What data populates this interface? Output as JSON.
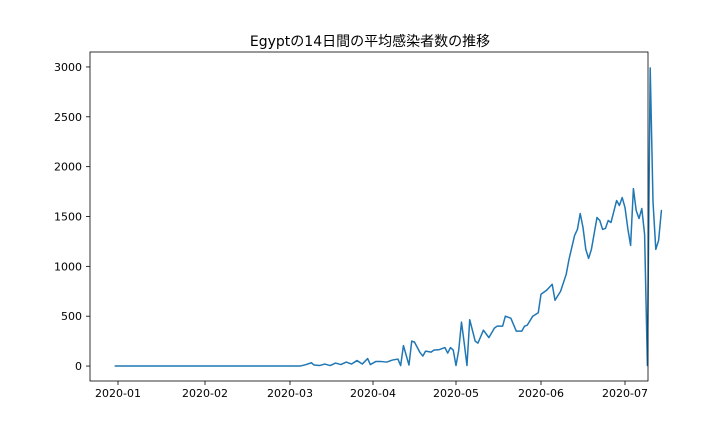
{
  "chart_data": {
    "type": "line",
    "title": "Egyptの14日間の平均感染者数の推移",
    "xlabel": "",
    "ylabel": "",
    "grid": false,
    "legend": "none",
    "xlim": [
      "2019-12-25",
      "2020-07-05"
    ],
    "ylim": [
      -150,
      3150
    ],
    "x_ticks": [
      "2020-01",
      "2020-02",
      "2020-03",
      "2020-04",
      "2020-05",
      "2020-06",
      "2020-07"
    ],
    "y_ticks": [
      0,
      500,
      1000,
      1500,
      2000,
      2500,
      3000
    ],
    "series": [
      {
        "color": "#1f77b4",
        "points": [
          [
            "2019-12-31",
            0
          ],
          [
            "2020-01-15",
            0
          ],
          [
            "2020-02-01",
            0
          ],
          [
            "2020-02-15",
            0
          ],
          [
            "2020-03-01",
            0
          ],
          [
            "2020-03-05",
            1
          ],
          [
            "2020-03-07",
            15
          ],
          [
            "2020-03-09",
            33
          ],
          [
            "2020-03-10",
            10
          ],
          [
            "2020-03-12",
            5
          ],
          [
            "2020-03-14",
            20
          ],
          [
            "2020-03-16",
            5
          ],
          [
            "2020-03-18",
            30
          ],
          [
            "2020-03-20",
            15
          ],
          [
            "2020-03-22",
            40
          ],
          [
            "2020-03-24",
            20
          ],
          [
            "2020-03-26",
            55
          ],
          [
            "2020-03-28",
            20
          ],
          [
            "2020-03-30",
            75
          ],
          [
            "2020-03-31",
            15
          ],
          [
            "2020-04-02",
            45
          ],
          [
            "2020-04-04",
            45
          ],
          [
            "2020-04-06",
            40
          ],
          [
            "2020-04-08",
            60
          ],
          [
            "2020-04-10",
            70
          ],
          [
            "2020-04-11",
            5
          ],
          [
            "2020-04-12",
            205
          ],
          [
            "2020-04-14",
            10
          ],
          [
            "2020-04-15",
            250
          ],
          [
            "2020-04-16",
            240
          ],
          [
            "2020-04-18",
            135
          ],
          [
            "2020-04-19",
            100
          ],
          [
            "2020-04-20",
            150
          ],
          [
            "2020-04-22",
            140
          ],
          [
            "2020-04-23",
            160
          ],
          [
            "2020-04-25",
            165
          ],
          [
            "2020-04-27",
            185
          ],
          [
            "2020-04-28",
            130
          ],
          [
            "2020-04-29",
            185
          ],
          [
            "2020-04-30",
            160
          ],
          [
            "2020-05-01",
            5
          ],
          [
            "2020-05-02",
            160
          ],
          [
            "2020-05-03",
            440
          ],
          [
            "2020-05-04",
            230
          ],
          [
            "2020-05-05",
            5
          ],
          [
            "2020-05-06",
            465
          ],
          [
            "2020-05-08",
            250
          ],
          [
            "2020-05-09",
            230
          ],
          [
            "2020-05-11",
            360
          ],
          [
            "2020-05-13",
            285
          ],
          [
            "2020-05-15",
            380
          ],
          [
            "2020-05-16",
            400
          ],
          [
            "2020-05-18",
            400
          ],
          [
            "2020-05-19",
            500
          ],
          [
            "2020-05-21",
            480
          ],
          [
            "2020-05-23",
            350
          ],
          [
            "2020-05-25",
            350
          ],
          [
            "2020-05-26",
            400
          ],
          [
            "2020-05-27",
            410
          ],
          [
            "2020-05-29",
            500
          ],
          [
            "2020-05-31",
            535
          ],
          [
            "2020-06-01",
            720
          ],
          [
            "2020-06-03",
            760
          ],
          [
            "2020-06-05",
            820
          ],
          [
            "2020-06-06",
            660
          ],
          [
            "2020-06-08",
            750
          ],
          [
            "2020-06-10",
            920
          ],
          [
            "2020-06-11",
            1070
          ],
          [
            "2020-06-13",
            1310
          ],
          [
            "2020-06-14",
            1370
          ],
          [
            "2020-06-15",
            1530
          ],
          [
            "2020-06-16",
            1390
          ],
          [
            "2020-06-17",
            1170
          ],
          [
            "2020-06-18",
            1080
          ],
          [
            "2020-06-19",
            1170
          ],
          [
            "2020-06-21",
            1490
          ],
          [
            "2020-06-22",
            1460
          ],
          [
            "2020-06-23",
            1370
          ],
          [
            "2020-06-24",
            1380
          ],
          [
            "2020-06-25",
            1460
          ],
          [
            "2020-06-26",
            1440
          ],
          [
            "2020-06-27",
            1550
          ],
          [
            "2020-06-28",
            1660
          ],
          [
            "2020-06-29",
            1610
          ],
          [
            "2020-06-30",
            1690
          ],
          [
            "2020-07-01",
            1590
          ],
          [
            "2020-07-02",
            1380
          ],
          [
            "2020-07-03",
            1210
          ],
          [
            "2020-07-04",
            1780
          ],
          [
            "2020-07-05",
            1560
          ],
          [
            "2020-07-06",
            1480
          ],
          [
            "2020-07-07",
            1580
          ],
          [
            "2020-07-08",
            1320
          ],
          [
            "2020-07-09",
            5
          ],
          [
            "2020-07-10",
            2990
          ],
          [
            "2020-07-11",
            1650
          ],
          [
            "2020-07-12",
            1170
          ],
          [
            "2020-07-13",
            1260
          ],
          [
            "2020-07-14",
            1560
          ]
        ]
      }
    ]
  }
}
